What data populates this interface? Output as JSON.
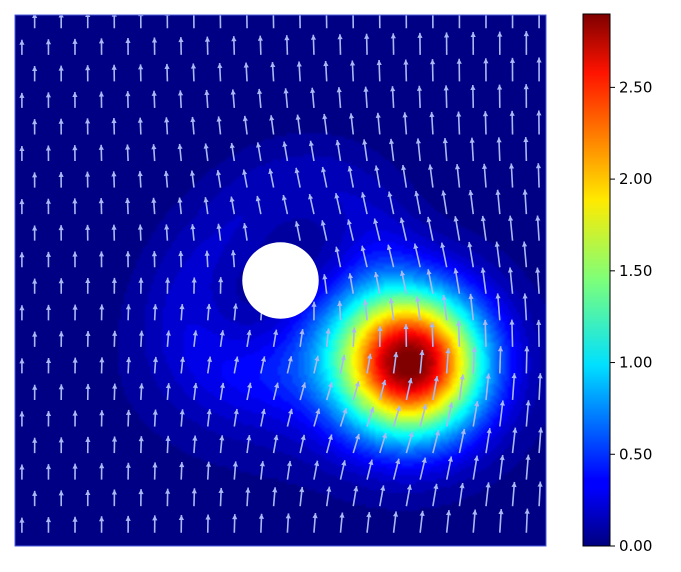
{
  "chart_data": {
    "type": "heatmap",
    "title": "",
    "xlabel": "",
    "ylabel": "",
    "xlim": [
      0,
      1
    ],
    "ylim": [
      0,
      1
    ],
    "colormap": "jet",
    "obstacle": {
      "shape": "circle",
      "cx": 0.5,
      "cy": 0.5,
      "r": 0.072,
      "color": "#ffffff"
    },
    "field_peaks": [
      {
        "x": 0.745,
        "y": 0.345,
        "value": 2.9,
        "spread": 0.095
      }
    ],
    "wake_level": 0.35,
    "vector_field": {
      "description": "quiver arrows",
      "color": "#a9b8f2",
      "grid_x": 20,
      "grid_y": 20
    },
    "colorbar": {
      "min": 0.0,
      "max": 2.9,
      "ticks": [
        0.0,
        0.5,
        1.0,
        1.5,
        2.0,
        2.5
      ],
      "tick_labels": [
        "0.00",
        "0.50",
        "1.00",
        "1.50",
        "2.00",
        "2.50"
      ]
    }
  }
}
